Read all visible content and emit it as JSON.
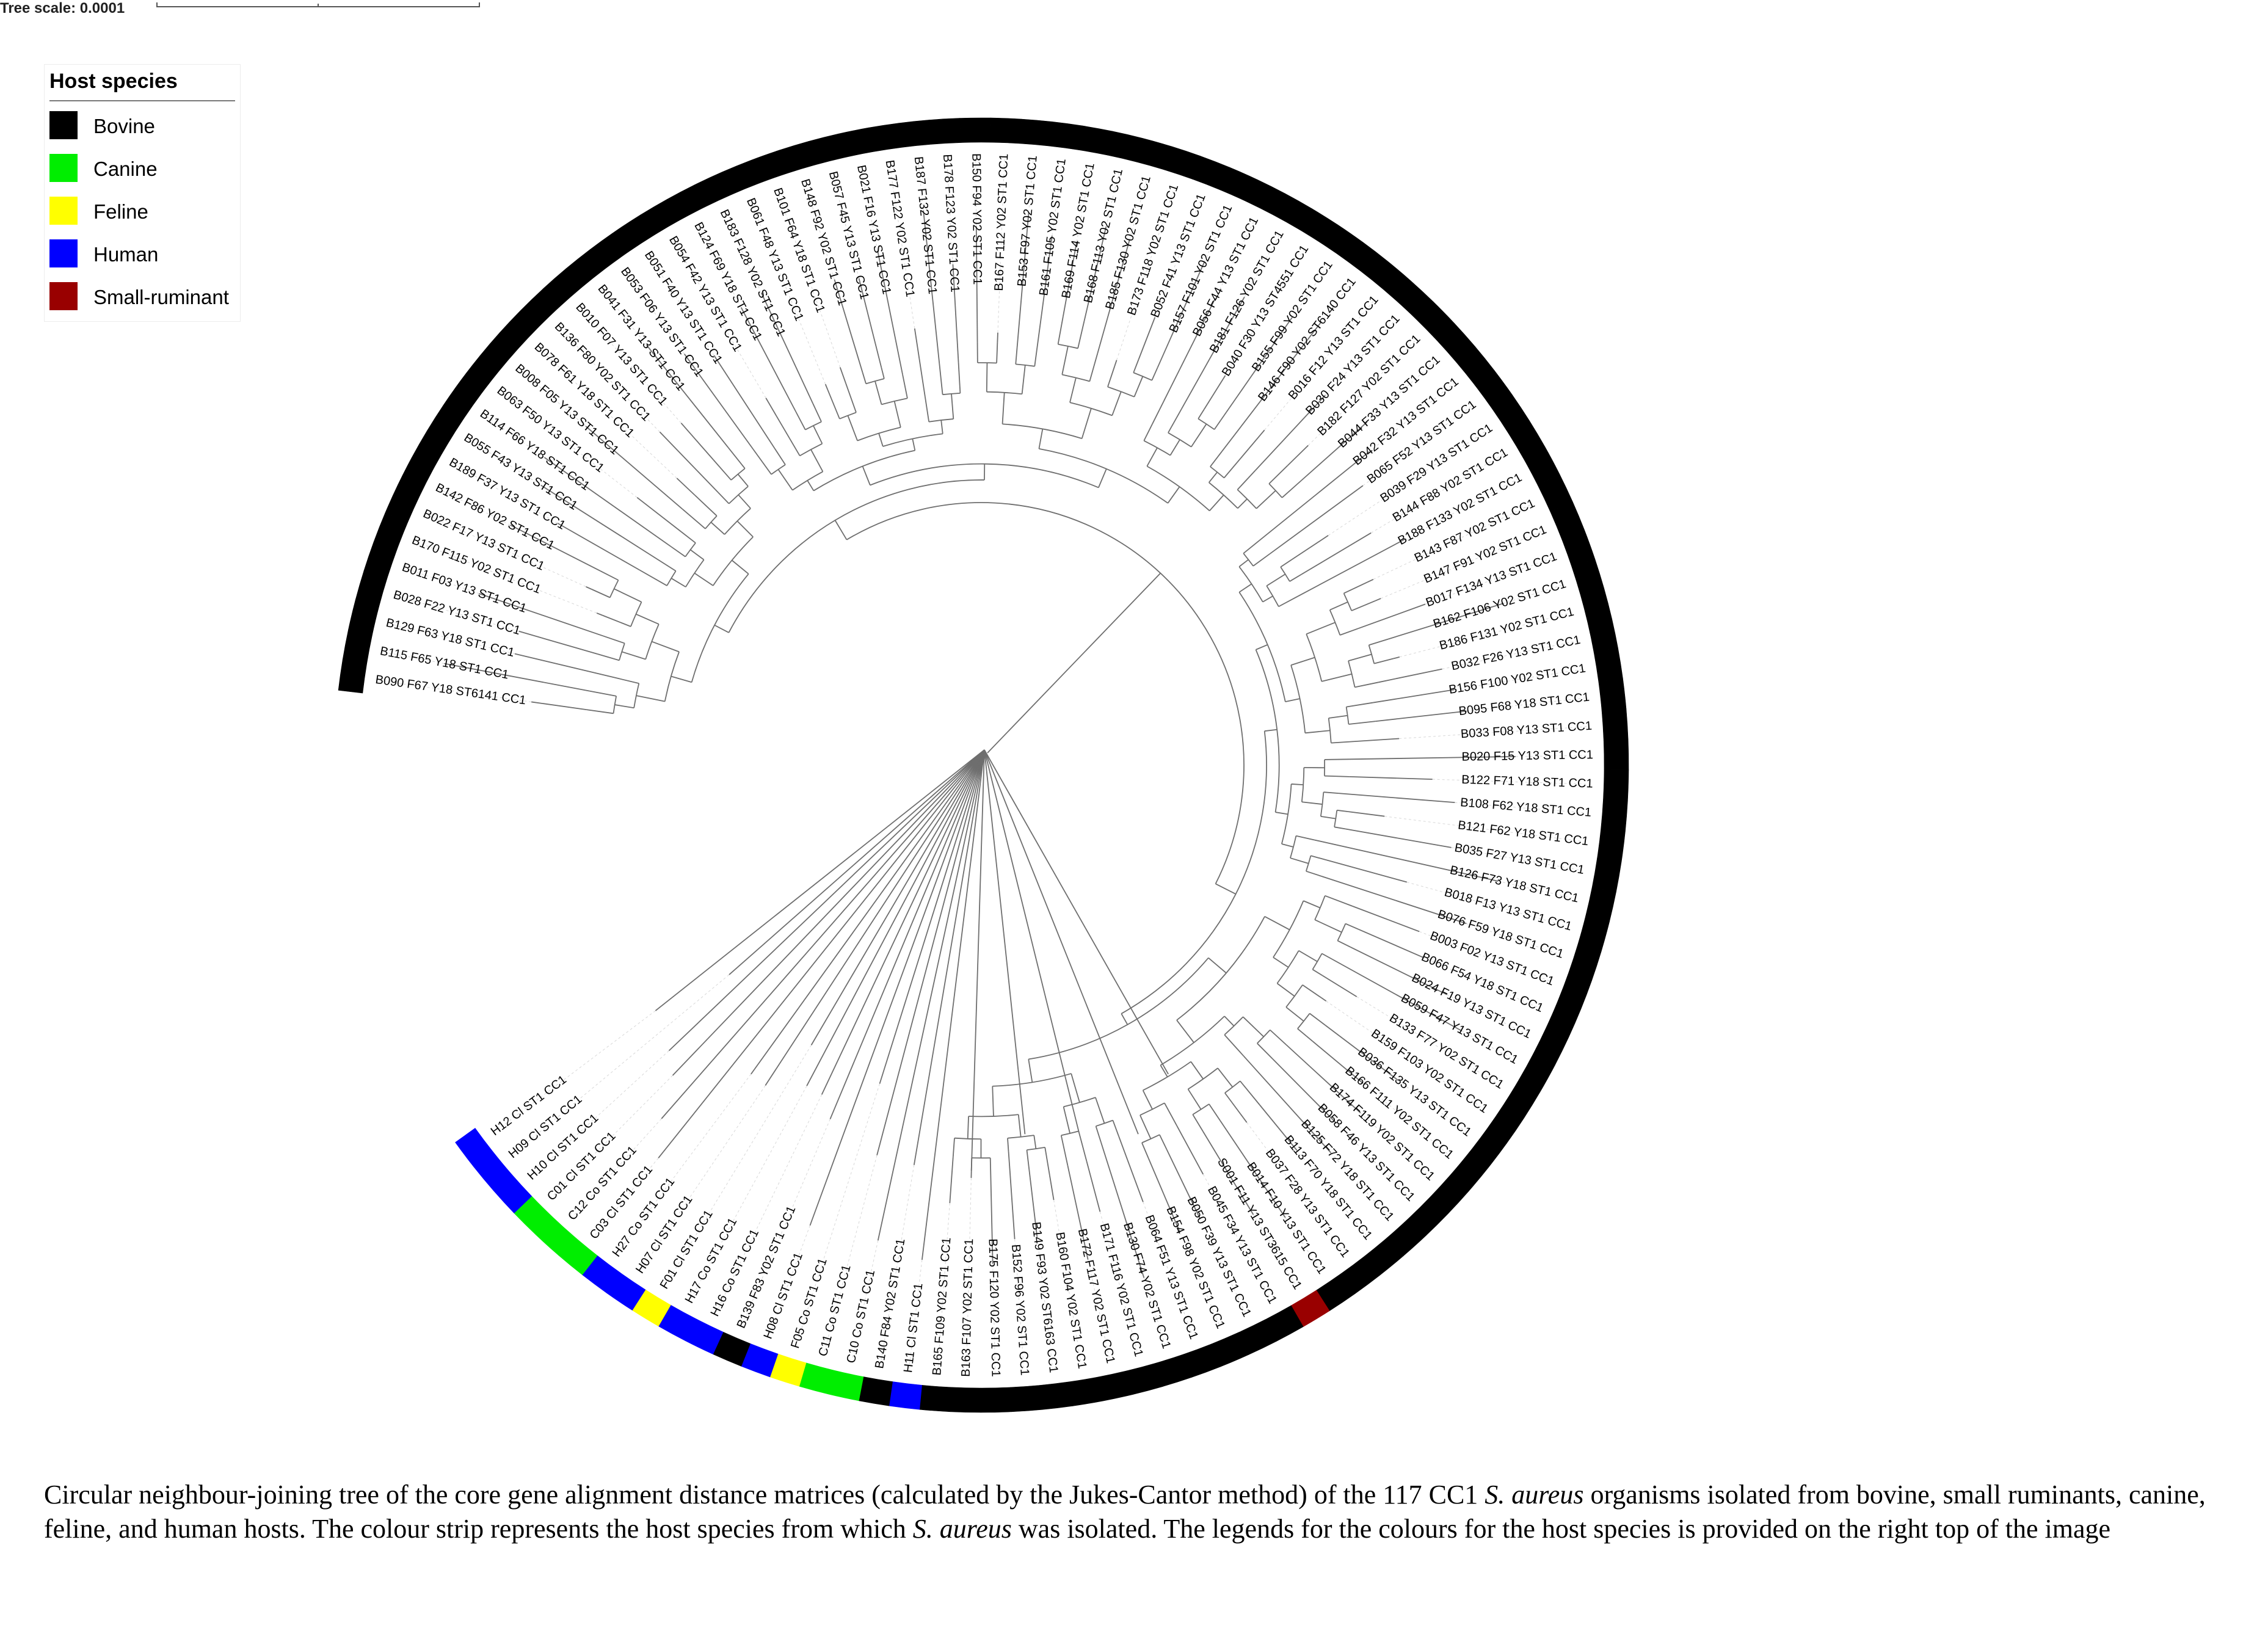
{
  "scale": {
    "label": "Tree scale: 0.0001"
  },
  "legend": {
    "title": "Host species",
    "items": [
      {
        "label": "Bovine",
        "color": "#000000"
      },
      {
        "label": "Canine",
        "color": "#00ee00"
      },
      {
        "label": "Feline",
        "color": "#ffff00"
      },
      {
        "label": "Human",
        "color": "#0000ff"
      },
      {
        "label": "Small-ruminant",
        "color": "#990000"
      }
    ]
  },
  "leaves": [
    "B090 F67 Y18 ST6141 CC1",
    "B115 F65 Y18 ST1 CC1",
    "B129 F63 Y18 ST1 CC1",
    "B028 F22 Y13 ST1 CC1",
    "B011 F03 Y13 ST1 CC1",
    "B170 F115 Y02 ST1 CC1",
    "B022 F17 Y13 ST1 CC1",
    "B142 F86 Y02 ST1 CC1",
    "B189 F37 Y13 ST1 CC1",
    "B055 F43 Y13 ST1 CC1",
    "B114 F66 Y18 ST1 CC1",
    "B063 F50 Y13 ST1 CC1",
    "B008 F05 Y13 ST1 CC1",
    "B078 F61 Y18 ST1 CC1",
    "B136 F80 Y02 ST1 CC1",
    "B010 F07 Y13 ST1 CC1",
    "B041 F31 Y13 ST1 CC1",
    "B053 F06 Y13 ST1 CC1",
    "B051 F40 Y13 ST1 CC1",
    "B054 F42 Y13 ST1 CC1",
    "B124 F69 Y18 ST1 CC1",
    "B183 F128 Y02 ST1 CC1",
    "B061 F48 Y13 ST1 CC1",
    "B101 F64 Y18 ST1 CC1",
    "B148 F92 Y02 ST1 CC1",
    "B057 F45 Y13 ST1 CC1",
    "B021 F16 Y13 ST1 CC1",
    "B177 F122 Y02 ST1 CC1",
    "B187 F132 Y02 ST1 CC1",
    "B178 F123 Y02 ST1 CC1",
    "B150 F94 Y02 ST1 CC1",
    "B167 F112 Y02 ST1 CC1",
    "B153 F97 Y02 ST1 CC1",
    "B161 F105 Y02 ST1 CC1",
    "B169 F114 Y02 ST1 CC1",
    "B168 F113 Y02 ST1 CC1",
    "B185 F130 Y02 ST1 CC1",
    "B173 F118 Y02 ST1 CC1",
    "B052 F41 Y13 ST1 CC1",
    "B157 F101 Y02 ST1 CC1",
    "B056 F44 Y13 ST1 CC1",
    "B181 F126 Y02 ST1 CC1",
    "B040 F30 Y13 ST4551 CC1",
    "B155 F99 Y02 ST1 CC1",
    "B146 F90 Y02 ST6140 CC1",
    "B016 F12 Y13 ST1 CC1",
    "B030 F24 Y13 ST1 CC1",
    "B182 F127 Y02 ST1 CC1",
    "B044 F33 Y13 ST1 CC1",
    "B042 F32 Y13 ST1 CC1",
    "B065 F52 Y13 ST1 CC1",
    "B039 F29 Y13 ST1 CC1",
    "B144 F88 Y02 ST1 CC1",
    "B188 F133 Y02 ST1 CC1",
    "B143 F87 Y02 ST1 CC1",
    "B147 F91 Y02 ST1 CC1",
    "B017 F134 Y13 ST1 CC1",
    "B162 F106 Y02 ST1 CC1",
    "B186 F131 Y02 ST1 CC1",
    "B032 F26 Y13 ST1 CC1",
    "B156 F100 Y02 ST1 CC1",
    "B095 F68 Y18 ST1 CC1",
    "B033 F08 Y13 ST1 CC1",
    "B020 F15 Y13 ST1 CC1",
    "B122 F71 Y18 ST1 CC1",
    "B108 F62 Y18 ST1 CC1",
    "B121 F62 Y18 ST1 CC1",
    "B035 F27 Y13 ST1 CC1",
    "B126 F73 Y18 ST1 CC1",
    "B018 F13 Y13 ST1 CC1",
    "B076 F59 Y18 ST1 CC1",
    "B003 F02 Y13 ST1 CC1",
    "B066 F54 Y18 ST1 CC1",
    "B024 F19 Y13 ST1 CC1",
    "B059 F47 Y13 ST1 CC1",
    "B133 F77 Y02 ST1 CC1",
    "B159 F103 Y02 ST1 CC1",
    "B036 F135 Y13 ST1 CC1",
    "B166 F111 Y02 ST1 CC1",
    "B174 F119 Y02 ST1 CC1",
    "B058 F46 Y13 ST1 CC1",
    "B125 F72 Y18 ST1 CC1",
    "B113 F70 Y18 ST1 CC1",
    "B037 F28 Y13 ST1 CC1",
    "B014 F10 Y13 ST1 CC1",
    "S001 F11 Y13 ST3615 CC1",
    "B045 F34 Y13 ST1 CC1",
    "B050 F39 Y13 ST1 CC1",
    "B154 F98 Y02 ST1 CC1",
    "B064 F51 Y13 ST1 CC1",
    "B130 F74 Y02 ST1 CC1",
    "B171 F116 Y02 ST1 CC1",
    "B172 F117 Y02 ST1 CC1",
    "B160 F104 Y02 ST1 CC1",
    "B149 F93 Y02 ST6163 CC1",
    "B152 F96 Y02 ST1 CC1",
    "B175 F120 Y02 ST1 CC1",
    "B163 F107 Y02 ST1 CC1",
    "B165 F109 Y02 ST1 CC1",
    "H11 Cl ST1 CC1",
    "B140 F84 Y02 ST1 CC1",
    "C10 Co ST1 CC1",
    "C11 Co ST1 CC1",
    "F05 Co ST1 CC1",
    "H08 Cl ST1 CC1",
    "B139 F83 Y02 ST1 CC1",
    "H16 Co ST1 CC1",
    "H17 Co ST1 CC1",
    "F01 Cl ST1 CC1",
    "H07 Cl ST1 CC1",
    "H27 Co ST1 CC1",
    "C03 Cl ST1 CC1",
    "C12 Co ST1 CC1",
    "C01 Cl ST1 CC1",
    "H10 Cl ST1 CC1",
    "H09 Cl ST1 CC1",
    "H12 Cl ST1 CC1"
  ],
  "strip": [
    "Bovine",
    "Bovine",
    "Bovine",
    "Bovine",
    "Bovine",
    "Bovine",
    "Bovine",
    "Bovine",
    "Bovine",
    "Bovine",
    "Bovine",
    "Bovine",
    "Bovine",
    "Bovine",
    "Bovine",
    "Bovine",
    "Bovine",
    "Bovine",
    "Bovine",
    "Bovine",
    "Bovine",
    "Bovine",
    "Bovine",
    "Bovine",
    "Bovine",
    "Bovine",
    "Bovine",
    "Bovine",
    "Bovine",
    "Bovine",
    "Bovine",
    "Bovine",
    "Bovine",
    "Bovine",
    "Bovine",
    "Bovine",
    "Bovine",
    "Bovine",
    "Bovine",
    "Bovine",
    "Bovine",
    "Bovine",
    "Bovine",
    "Bovine",
    "Bovine",
    "Bovine",
    "Bovine",
    "Bovine",
    "Bovine",
    "Bovine",
    "Bovine",
    "Bovine",
    "Bovine",
    "Bovine",
    "Bovine",
    "Bovine",
    "Bovine",
    "Bovine",
    "Bovine",
    "Bovine",
    "Bovine",
    "Bovine",
    "Bovine",
    "Bovine",
    "Bovine",
    "Bovine",
    "Bovine",
    "Bovine",
    "Bovine",
    "Bovine",
    "Bovine",
    "Bovine",
    "Bovine",
    "Bovine",
    "Bovine",
    "Bovine",
    "Bovine",
    "Bovine",
    "Bovine",
    "Bovine",
    "Bovine",
    "Bovine",
    "Bovine",
    "Bovine",
    "Bovine",
    "Small-ruminant",
    "Bovine",
    "Bovine",
    "Bovine",
    "Bovine",
    "Bovine",
    "Bovine",
    "Bovine",
    "Bovine",
    "Bovine",
    "Bovine",
    "Bovine",
    "Bovine",
    "Bovine",
    "Human",
    "Bovine",
    "Canine",
    "Canine",
    "Feline",
    "Human",
    "Bovine",
    "Human",
    "Human",
    "Feline",
    "Human",
    "Human",
    "Canine",
    "Canine",
    "Canine",
    "Human",
    "Human",
    "Human"
  ],
  "caption": {
    "p1": "Circular neighbour-joining tree of the core gene alignment distance matrices (calculated by the Jukes-Cantor method) of the 117 CC1 ",
    "i1": "S. aureus",
    "p2": " organisms isolated from bovine, small ruminants, canine, feline, and human hosts. The colour strip represents the host species from which ",
    "i2": "S. aureus",
    "p3": " was isolated. The legends for the colours for the host species is provided on the right top of the image"
  }
}
